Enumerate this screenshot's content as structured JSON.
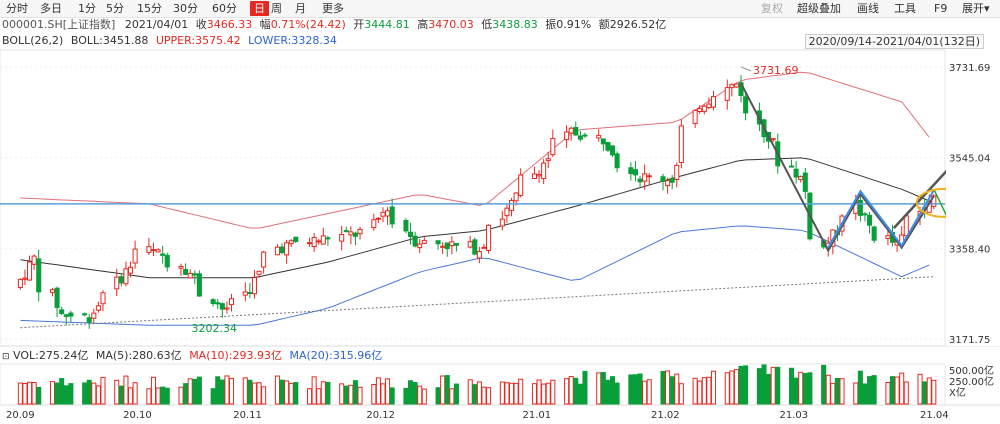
{
  "toolbar": {
    "periods": [
      "分时",
      "多日",
      "1分",
      "5分",
      "15分",
      "30分",
      "60分",
      "日",
      "周",
      "月",
      "更多"
    ],
    "active_period": "日",
    "right_items": [
      "复权",
      "超级叠加",
      "画线",
      "工具",
      "F9",
      "展开"
    ],
    "expand_glyph": "▾"
  },
  "quote": {
    "symbol": "000001.SH[上证指数]",
    "date": "2021/04/01",
    "close_label": "收",
    "close": "3466.33",
    "change_label": "幅",
    "change": "0.71%(24.42)",
    "open_label": "开",
    "open": "3444.81",
    "high_label": "高",
    "high": "3470.03",
    "low_label": "低",
    "low": "3438.83",
    "amplitude_label": "振",
    "amplitude": "0.91%",
    "amount_label": "额",
    "amount": "2926.52亿"
  },
  "boll": {
    "label": "BOLL(26,2)",
    "boll_label": "BOLL:",
    "boll": "3451.88",
    "upper_label": "UPPER:",
    "upper": "3575.42",
    "lower_label": "LOWER:",
    "lower": "3328.34"
  },
  "date_range": "2020/09/14-2021/04/01(132日)",
  "volume": {
    "vol_label": "VOL:",
    "vol": "275.24亿",
    "ma5_label": "MA(5):",
    "ma5": "280.63亿",
    "ma10_label": "MA(10):",
    "ma10": "293.93亿",
    "ma20_label": "MA(20):",
    "ma20": "315.96亿",
    "axis_ticks": [
      "500.00亿",
      "250.00亿",
      "X亿"
    ]
  },
  "colors": {
    "up": "#e8271f",
    "down": "#0a9e3a",
    "upper_band": "#e0707a",
    "mid_band": "#333333",
    "lower_band": "#4a78d8",
    "hline": "#5aa0dc",
    "ellipse": "#f0b020",
    "trend_dark": "#555555",
    "trend_green": "#2ea82e",
    "trend_blue": "#3a8ee8"
  },
  "chart_data": {
    "type": "candlestick",
    "x_ticks": [
      "20.09",
      "20.10",
      "20.11",
      "20.12",
      "21.01",
      "21.02",
      "21.03",
      "21.04"
    ],
    "y_ticks": [
      3731.69,
      3545.04,
      3358.4,
      3171.75
    ],
    "ylim": [
      3171.75,
      3731.69
    ],
    "annotations": {
      "high_marker": 3731.69,
      "low_marker": 3202.34,
      "horizontal_line": 3450
    },
    "last_bar": {
      "open": 3444.81,
      "high": 3470.03,
      "low": 3438.83,
      "close": 3466.33
    },
    "boll_last": {
      "mid": 3451.88,
      "upper": 3575.42,
      "lower": 3328.34
    },
    "price_path": [
      [
        "2020-09-14",
        3278
      ],
      [
        "2020-09-18",
        3338
      ],
      [
        "2020-09-24",
        3223
      ],
      [
        "2020-09-30",
        3218
      ],
      [
        "2020-10-12",
        3358
      ],
      [
        "2020-10-20",
        3328
      ],
      [
        "2020-10-30",
        3225
      ],
      [
        "2020-11-04",
        3278
      ],
      [
        "2020-11-10",
        3360
      ],
      [
        "2020-11-20",
        3378
      ],
      [
        "2020-11-30",
        3392
      ],
      [
        "2020-12-04",
        3445
      ],
      [
        "2020-12-10",
        3375
      ],
      [
        "2020-12-24",
        3358
      ],
      [
        "2021-01-04",
        3502
      ],
      [
        "2021-01-13",
        3598
      ],
      [
        "2021-01-20",
        3583
      ],
      [
        "2021-01-28",
        3505
      ],
      [
        "2021-02-04",
        3502
      ],
      [
        "2021-02-10",
        3655
      ],
      [
        "2021-02-18",
        3697
      ],
      [
        "2021-02-25",
        3585
      ],
      [
        "2021-03-04",
        3503
      ],
      [
        "2021-03-09",
        3359
      ],
      [
        "2021-03-16",
        3446
      ],
      [
        "2021-03-19",
        3404
      ],
      [
        "2021-03-25",
        3364
      ],
      [
        "2021-04-01",
        3466
      ]
    ],
    "boll_upper_path": [
      [
        "2020-09-14",
        3462
      ],
      [
        "2020-10-12",
        3450
      ],
      [
        "2020-11-04",
        3398
      ],
      [
        "2020-11-20",
        3430
      ],
      [
        "2020-12-10",
        3470
      ],
      [
        "2020-12-24",
        3445
      ],
      [
        "2021-01-13",
        3602
      ],
      [
        "2021-02-04",
        3618
      ],
      [
        "2021-02-18",
        3705
      ],
      [
        "2021-03-04",
        3722
      ],
      [
        "2021-03-25",
        3660
      ],
      [
        "2021-04-01",
        3575
      ]
    ],
    "boll_mid_path": [
      [
        "2020-09-14",
        3335
      ],
      [
        "2020-10-12",
        3298
      ],
      [
        "2020-11-04",
        3298
      ],
      [
        "2020-11-20",
        3330
      ],
      [
        "2020-12-10",
        3382
      ],
      [
        "2020-12-24",
        3395
      ],
      [
        "2021-01-13",
        3445
      ],
      [
        "2021-02-04",
        3505
      ],
      [
        "2021-02-18",
        3540
      ],
      [
        "2021-03-04",
        3545
      ],
      [
        "2021-03-25",
        3480
      ],
      [
        "2021-04-01",
        3452
      ]
    ],
    "boll_lower_path": [
      [
        "2020-09-14",
        3210
      ],
      [
        "2020-10-12",
        3200
      ],
      [
        "2020-11-04",
        3200
      ],
      [
        "2020-11-20",
        3235
      ],
      [
        "2020-12-10",
        3310
      ],
      [
        "2020-12-24",
        3340
      ],
      [
        "2021-01-13",
        3290
      ],
      [
        "2021-02-04",
        3392
      ],
      [
        "2021-02-18",
        3405
      ],
      [
        "2021-03-04",
        3395
      ],
      [
        "2021-03-25",
        3300
      ],
      [
        "2021-04-01",
        3328
      ]
    ],
    "volume_axis": {
      "ticks": [
        500,
        250
      ],
      "unit": "亿"
    }
  }
}
